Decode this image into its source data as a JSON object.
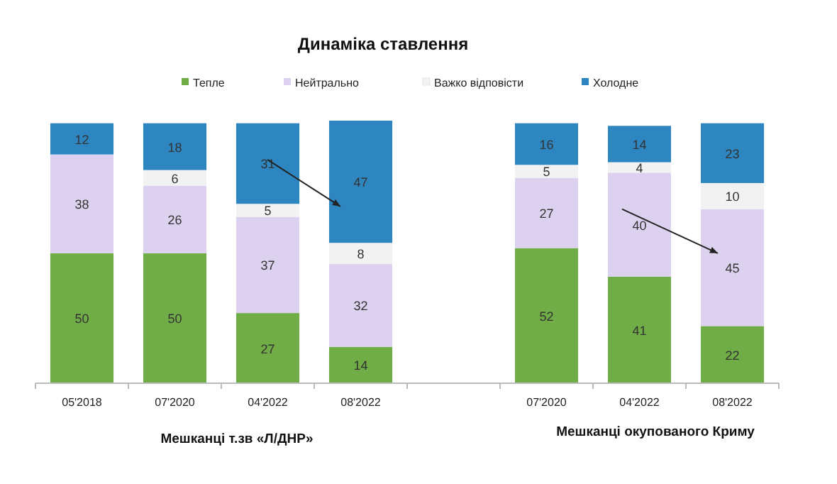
{
  "chart_data": {
    "type": "bar",
    "stacked": true,
    "title": "Динаміка ставлення",
    "categories": [
      "05'2018",
      "07'2020",
      "04'2022",
      "08'2022",
      null,
      "07'2020",
      "04'2022",
      "08'2022"
    ],
    "series": [
      {
        "name": "Тепле",
        "color": "#70ad47",
        "values": [
          50,
          50,
          27,
          14,
          null,
          52,
          41,
          22
        ]
      },
      {
        "name": "Нейтрально",
        "color": "#dcd2ef",
        "values": [
          38,
          26,
          37,
          32,
          null,
          27,
          40,
          45
        ]
      },
      {
        "name": "Важко відповісти",
        "color": "#f2f2f2",
        "values": [
          null,
          6,
          5,
          8,
          null,
          5,
          4,
          10
        ]
      },
      {
        "name": "Холодне",
        "color": "#2e86c1",
        "values": [
          12,
          18,
          31,
          47,
          null,
          16,
          14,
          23
        ]
      }
    ],
    "data_labels": true,
    "legend": "top",
    "annotations": [
      "Мешканці т.зв «Л/ДНР»",
      "Мешканці окупованого Криму"
    ]
  }
}
